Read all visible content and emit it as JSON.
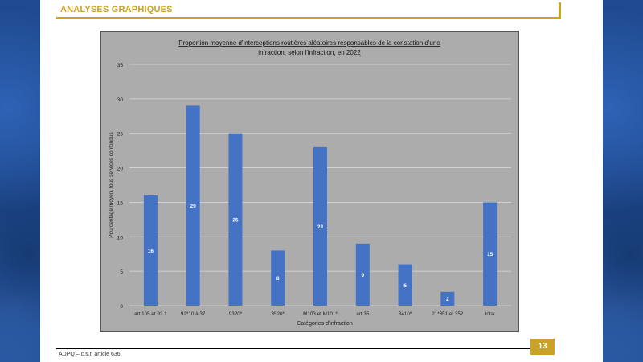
{
  "header": {
    "title": "ANALYSES GRAPHIQUES"
  },
  "footer": {
    "text": "ADPQ – c.s.r. article 636",
    "page_number": "13"
  },
  "colors": {
    "gold": "#c9a227",
    "bar": "#4472c4",
    "plot_bg": "#acacac",
    "side_blue": "#1f4a8f"
  },
  "chart_data": {
    "type": "bar",
    "title_line1": "Proportion moyenne d'interceptions routières aléatoires responsables de la constation d'une",
    "title_line2": "infraction, selon l'infraction, en 2022",
    "xlabel": "Catégories d'infraction",
    "ylabel": "Pourcentage moyen, tous services confondus",
    "categories": [
      "art.105 et 93.1",
      "92*10 à 37",
      "9320*",
      "3520*",
      "M103 et M101*",
      "art.35",
      "3410*",
      "21*351 et 352",
      "total"
    ],
    "values": [
      16,
      29,
      25,
      8,
      23,
      9,
      6,
      2,
      15
    ],
    "value_labels": [
      "16",
      "29",
      "25",
      "8",
      "23",
      "9",
      "6",
      "2",
      "15"
    ],
    "yticks": [
      "0",
      "5",
      "10",
      "15",
      "20",
      "25",
      "30",
      "35"
    ],
    "ylim": [
      0,
      35
    ],
    "grid": true,
    "legend": "none"
  }
}
